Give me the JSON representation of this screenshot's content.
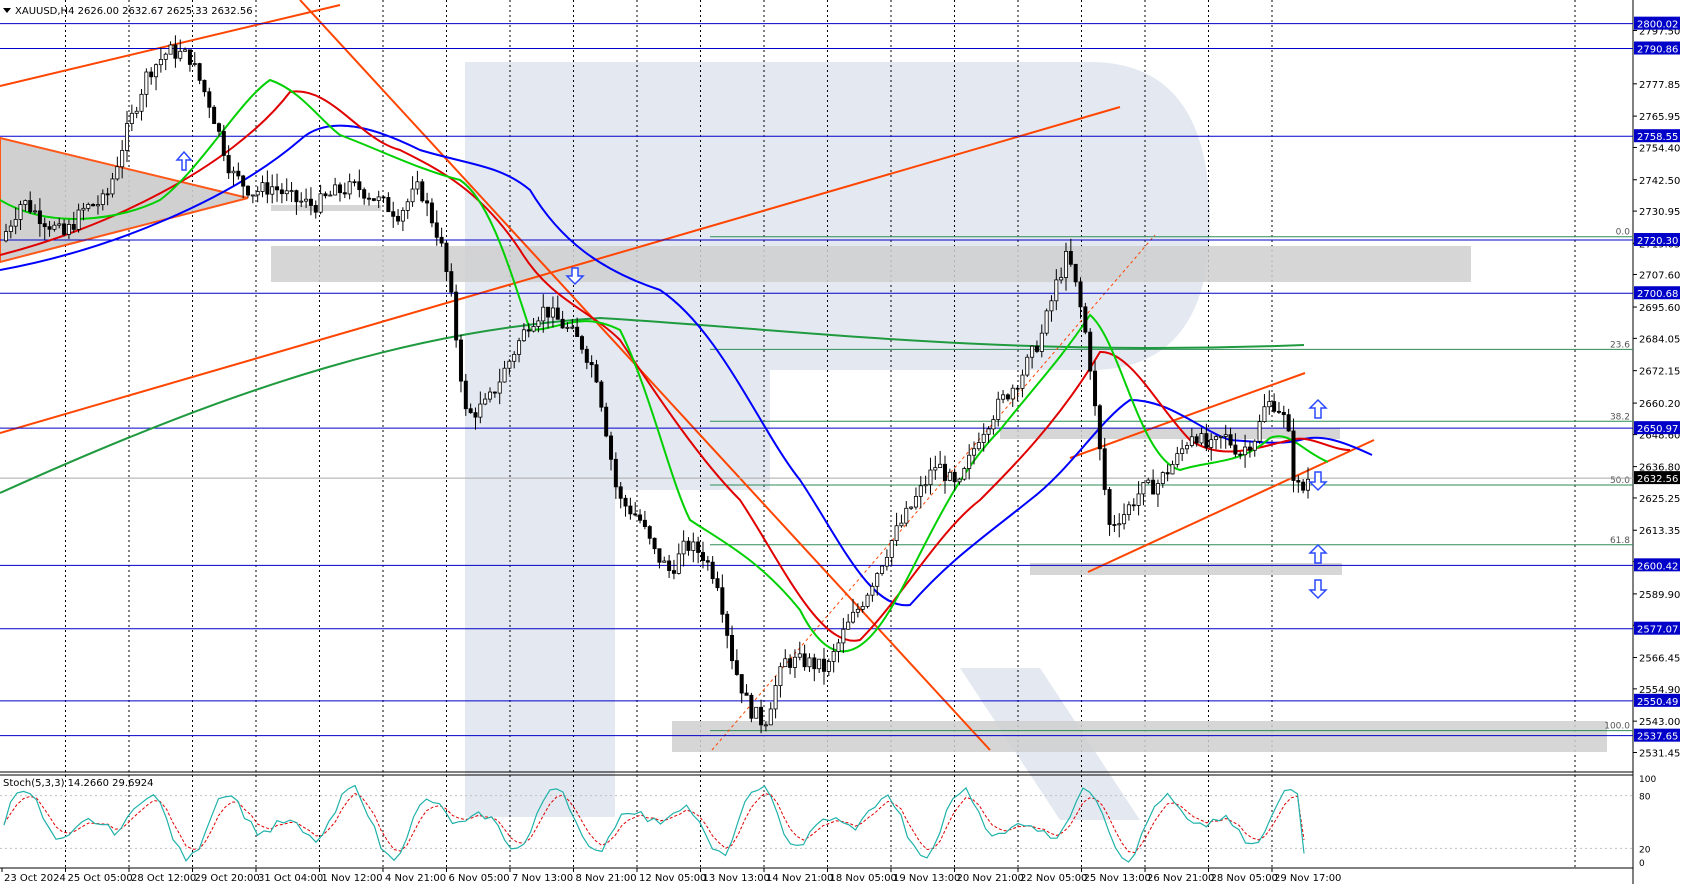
{
  "chart_data": {
    "type": "candlestick",
    "header": "XAUUSD,H4  2626.00 2632.67 2625.33 2632.56",
    "symbol": "XAUUSD",
    "timeframe": "H4",
    "ylim": [
      2525,
      2808
    ],
    "price_ticks": [
      "2797.50",
      "2777.85",
      "2765.95",
      "2754.40",
      "2742.50",
      "2730.95",
      "2719.05",
      "2707.60",
      "2695.60",
      "2684.05",
      "2672.15",
      "2660.20",
      "2648.60",
      "2636.80",
      "2625.25",
      "2613.35",
      "2601.80",
      "2589.90",
      "2578.35",
      "2566.45",
      "2554.90",
      "2543.00",
      "2531.45"
    ],
    "x_labels": [
      "23 Oct 2024",
      "25 Oct 05:00",
      "28 Oct 12:00",
      "29 Oct 20:00",
      "31 Oct 04:00",
      "1 Nov 12:00",
      "4 Nov 21:00",
      "6 Nov 05:00",
      "7 Nov 13:00",
      "8 Nov 21:00",
      "12 Nov 05:00",
      "13 Nov 13:00",
      "14 Nov 21:00",
      "18 Nov 05:00",
      "19 Nov 13:00",
      "20 Nov 21:00",
      "22 Nov 05:00",
      "25 Nov 13:00",
      "26 Nov 21:00",
      "28 Nov 05:00",
      "29 Nov 17:00"
    ],
    "current_price": "2632.56",
    "levels": [
      {
        "value": 2800.02,
        "label": "2800.02"
      },
      {
        "value": 2790.86,
        "label": "2790.86"
      },
      {
        "value": 2758.55,
        "label": "2758.55"
      },
      {
        "value": 2720.3,
        "label": "2720.30"
      },
      {
        "value": 2700.68,
        "label": "2700.68"
      },
      {
        "value": 2650.97,
        "label": "2650.97"
      },
      {
        "value": 2600.42,
        "label": "2600.42"
      },
      {
        "value": 2577.07,
        "label": "2577.07"
      },
      {
        "value": 2550.49,
        "label": "2550.49"
      },
      {
        "value": 2537.65,
        "label": "2537.65"
      }
    ],
    "fibonacci": [
      {
        "label": "0.0",
        "value": 2721.5
      },
      {
        "label": "23.6",
        "value": 2680.0
      },
      {
        "label": "38.2",
        "value": 2653.5
      },
      {
        "label": "50.0",
        "value": 2630.0
      },
      {
        "label": "61.8",
        "value": 2608.0
      },
      {
        "label": "100.0",
        "value": 2539.5
      }
    ],
    "close_path": [
      [
        0,
        2720
      ],
      [
        8,
        2735
      ],
      [
        16,
        2728
      ],
      [
        24,
        2722
      ],
      [
        32,
        2732
      ],
      [
        40,
        2735
      ],
      [
        48,
        2760
      ],
      [
        56,
        2782
      ],
      [
        64,
        2790
      ],
      [
        72,
        2788
      ],
      [
        80,
        2770
      ],
      [
        88,
        2745
      ],
      [
        96,
        2738
      ],
      [
        104,
        2740
      ],
      [
        112,
        2735
      ],
      [
        120,
        2733
      ],
      [
        128,
        2738
      ],
      [
        136,
        2740
      ],
      [
        144,
        2735
      ],
      [
        152,
        2730
      ],
      [
        160,
        2740
      ],
      [
        168,
        2720
      ],
      [
        172,
        2700
      ],
      [
        178,
        2655
      ],
      [
        186,
        2660
      ],
      [
        194,
        2675
      ],
      [
        202,
        2690
      ],
      [
        208,
        2695
      ],
      [
        216,
        2688
      ],
      [
        222,
        2682
      ],
      [
        228,
        2670
      ],
      [
        236,
        2625
      ],
      [
        244,
        2618
      ],
      [
        250,
        2605
      ],
      [
        256,
        2598
      ],
      [
        262,
        2608
      ],
      [
        268,
        2605
      ],
      [
        274,
        2595
      ],
      [
        280,
        2565
      ],
      [
        286,
        2548
      ],
      [
        292,
        2542
      ],
      [
        296,
        2555
      ],
      [
        300,
        2565
      ],
      [
        308,
        2565
      ],
      [
        316,
        2562
      ],
      [
        322,
        2575
      ],
      [
        330,
        2588
      ],
      [
        336,
        2600
      ],
      [
        342,
        2612
      ],
      [
        350,
        2625
      ],
      [
        358,
        2638
      ],
      [
        366,
        2628
      ],
      [
        374,
        2648
      ],
      [
        382,
        2660
      ],
      [
        390,
        2670
      ],
      [
        398,
        2685
      ],
      [
        404,
        2705
      ],
      [
        408,
        2715
      ],
      [
        412,
        2700
      ],
      [
        416,
        2680
      ],
      [
        420,
        2645
      ],
      [
        424,
        2615
      ],
      [
        430,
        2620
      ],
      [
        436,
        2628
      ],
      [
        442,
        2630
      ],
      [
        450,
        2640
      ],
      [
        456,
        2650
      ],
      [
        462,
        2643
      ],
      [
        468,
        2648
      ],
      [
        474,
        2642
      ],
      [
        480,
        2648
      ],
      [
        484,
        2660
      ],
      [
        488,
        2660
      ],
      [
        492,
        2652
      ],
      [
        495,
        2630
      ],
      [
        498,
        2628
      ],
      [
        500,
        2632.56
      ]
    ],
    "stochastic": {
      "label": "Stoch(5,3,3) 14.2660 29.6924",
      "k_now": 14.266,
      "d_now": 29.6924,
      "ticks": [
        "100",
        "80",
        "20",
        "0"
      ]
    }
  }
}
